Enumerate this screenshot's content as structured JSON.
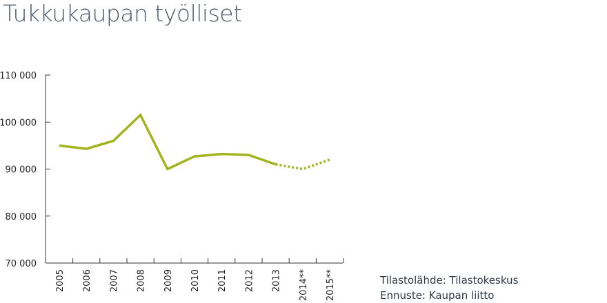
{
  "title": "Tukkukaupan työlliset",
  "sources": {
    "line1": "Tilastolähde: Tilastokeskus",
    "line2": "Ennuste: Kaupan liitto"
  },
  "colors": {
    "line": "#a2b41c",
    "axis": "#333333"
  },
  "chart_data": {
    "type": "line",
    "title": "Tukkukaupan työlliset",
    "xlabel": "",
    "ylabel": "",
    "categories": [
      "2005",
      "2006",
      "2007",
      "2008",
      "2009",
      "2010",
      "2011",
      "2012",
      "2013",
      "2014**",
      "2015**"
    ],
    "ylim": [
      70000,
      110000
    ],
    "yticks": [
      70000,
      80000,
      90000,
      100000,
      110000
    ],
    "ytick_labels": [
      "70 000",
      "80 000",
      "90 000",
      "100 000",
      "110 000"
    ],
    "grid": false,
    "legend": "none",
    "series": [
      {
        "values": [
          95000,
          94300,
          96000,
          101500,
          90000,
          92700,
          93200,
          93000,
          91000,
          90000,
          92000
        ],
        "solid_until_category": "2013",
        "forecast_style": "dotted"
      }
    ]
  }
}
